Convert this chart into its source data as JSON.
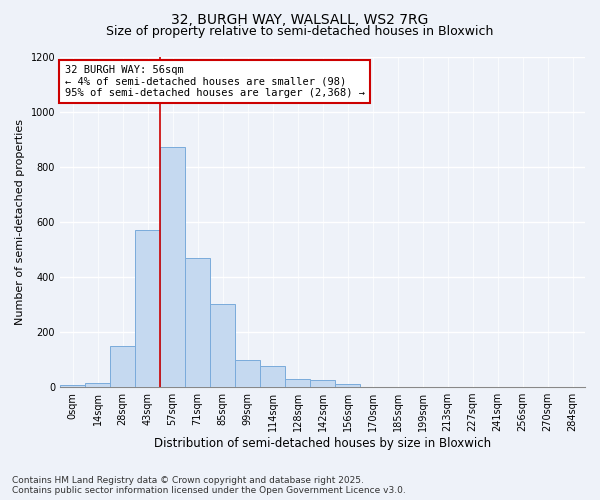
{
  "title_line1": "32, BURGH WAY, WALSALL, WS2 7RG",
  "title_line2": "Size of property relative to semi-detached houses in Bloxwich",
  "xlabel": "Distribution of semi-detached houses by size in Bloxwich",
  "ylabel": "Number of semi-detached properties",
  "bin_labels": [
    "0sqm",
    "14sqm",
    "28sqm",
    "43sqm",
    "57sqm",
    "71sqm",
    "85sqm",
    "99sqm",
    "114sqm",
    "128sqm",
    "142sqm",
    "156sqm",
    "170sqm",
    "185sqm",
    "199sqm",
    "213sqm",
    "227sqm",
    "241sqm",
    "256sqm",
    "270sqm",
    "284sqm"
  ],
  "bar_values": [
    8,
    15,
    150,
    570,
    870,
    470,
    300,
    100,
    75,
    30,
    25,
    10,
    0,
    0,
    0,
    0,
    0,
    0,
    0,
    0,
    0
  ],
  "bar_color": "#c5d9f0",
  "bar_edge_color": "#7aabdb",
  "property_line_x": 4.0,
  "annotation_text": "32 BURGH WAY: 56sqm\n← 4% of semi-detached houses are smaller (98)\n95% of semi-detached houses are larger (2,368) →",
  "annotation_box_color": "#ffffff",
  "annotation_box_edge": "#cc0000",
  "vline_color": "#cc0000",
  "ylim": [
    0,
    1200
  ],
  "yticks": [
    0,
    200,
    400,
    600,
    800,
    1000,
    1200
  ],
  "footer_line1": "Contains HM Land Registry data © Crown copyright and database right 2025.",
  "footer_line2": "Contains public sector information licensed under the Open Government Licence v3.0.",
  "bg_color": "#eef2f9",
  "plot_bg_color": "#eef2f9",
  "grid_color": "#ffffff",
  "title_fontsize": 10,
  "subtitle_fontsize": 9,
  "xlabel_fontsize": 8.5,
  "ylabel_fontsize": 8,
  "tick_fontsize": 7,
  "annotation_fontsize": 7.5,
  "footer_fontsize": 6.5
}
